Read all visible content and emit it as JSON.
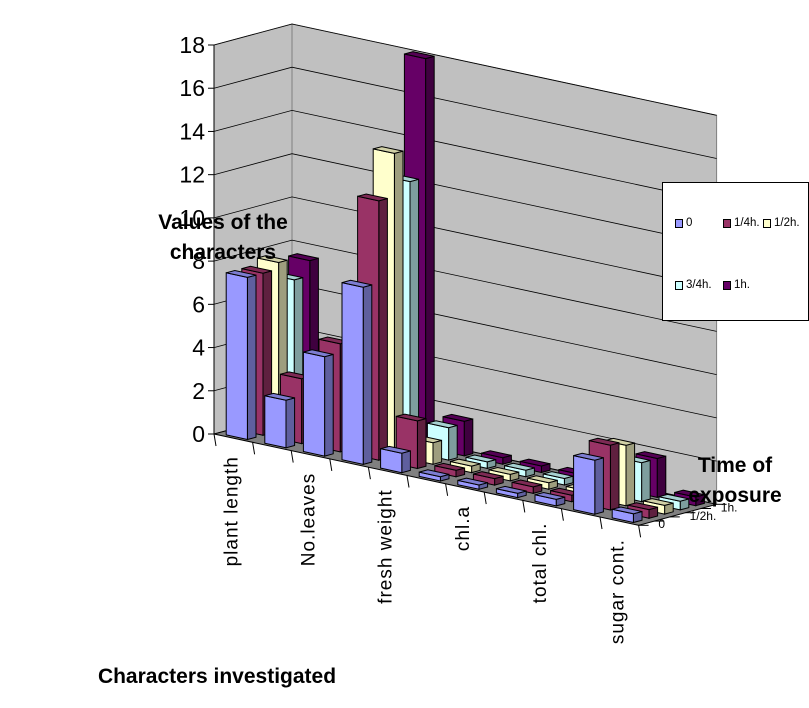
{
  "chart_data": {
    "type": "bar",
    "subtype": "3d-column",
    "ylabel": "Values of the characters",
    "xlabel": "Characters investigated",
    "zlabel": "Time of exposure",
    "ylim": [
      0,
      18
    ],
    "yticks": [
      "0",
      "2",
      "4",
      "6",
      "8",
      "10",
      "12",
      "14",
      "16",
      "18"
    ],
    "categories": [
      "plant length",
      "",
      "No.leaves",
      "",
      "fresh weight",
      "",
      "chl.a",
      "",
      "total chl.",
      "",
      "sugar cont."
    ],
    "depth_labels": [
      "0",
      "1/2h.",
      "1h."
    ],
    "series": [
      {
        "name": "0",
        "color": "#9999ff",
        "values": [
          7.5,
          2.2,
          4.6,
          8.2,
          0.9,
          0.2,
          0.2,
          0.2,
          0.3,
          2.5,
          0.4
        ]
      },
      {
        "name": "1/4h.",
        "color": "#993366",
        "values": [
          7.5,
          3.0,
          5.0,
          12.0,
          2.2,
          0.3,
          0.3,
          0.3,
          0.3,
          3.0,
          0.4
        ]
      },
      {
        "name": "1/2h.",
        "color": "#ffffcc",
        "values": [
          7.8,
          0.1,
          0.1,
          14.0,
          1.0,
          0.3,
          0.3,
          0.3,
          0.3,
          2.8,
          0.4
        ]
      },
      {
        "name": "3/4h.",
        "color": "#ccffff",
        "values": [
          6.8,
          0.1,
          0.1,
          12.5,
          1.5,
          0.3,
          0.3,
          0.3,
          0.3,
          1.8,
          0.4
        ]
      },
      {
        "name": "1h.",
        "color": "#660066",
        "values": [
          7.5,
          0.1,
          0.1,
          18.0,
          1.6,
          0.3,
          0.3,
          0.3,
          0.3,
          1.8,
          0.4
        ]
      }
    ],
    "legend": {
      "position": "right"
    },
    "grid": true
  }
}
